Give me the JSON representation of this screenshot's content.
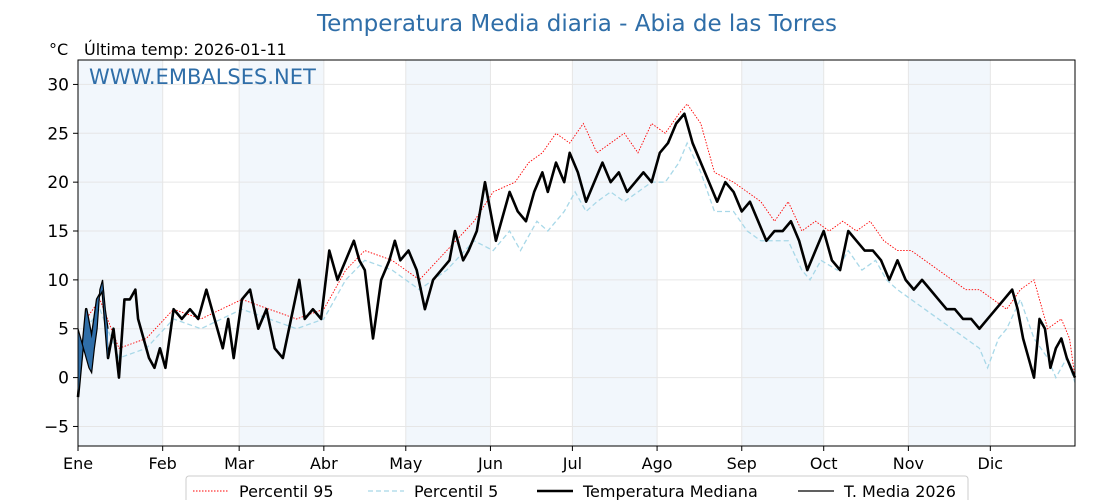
{
  "chart_data": {
    "type": "line",
    "title": "Temperatura Media diaria - Abia de las Torres",
    "unit_label": "°C",
    "last_temp_label": "Última temp: 2026-01-11",
    "watermark": "WWW.EMBALSES.NET",
    "xlabel": "",
    "ylabel": "",
    "x_range_days": [
      0,
      365
    ],
    "ylim": [
      -7,
      32.5
    ],
    "y_ticks": [
      -5,
      0,
      5,
      10,
      15,
      20,
      25,
      30
    ],
    "y_tick_labels": [
      "−5",
      "0",
      "5",
      "10",
      "15",
      "20",
      "25",
      "30"
    ],
    "month_ticks": [
      {
        "day": 0,
        "label": "Ene"
      },
      {
        "day": 31,
        "label": "Feb"
      },
      {
        "day": 59,
        "label": "Mar"
      },
      {
        "day": 90,
        "label": "Abr"
      },
      {
        "day": 120,
        "label": "May"
      },
      {
        "day": 151,
        "label": "Jun"
      },
      {
        "day": 181,
        "label": "Jul"
      },
      {
        "day": 212,
        "label": "Ago"
      },
      {
        "day": 243,
        "label": "Sep"
      },
      {
        "day": 273,
        "label": "Oct"
      },
      {
        "day": 304,
        "label": "Nov"
      },
      {
        "day": 334,
        "label": "Dic"
      }
    ],
    "shaded_bands": [
      [
        0,
        31
      ],
      [
        59,
        90
      ],
      [
        120,
        151
      ],
      [
        181,
        212
      ],
      [
        243,
        273
      ],
      [
        304,
        334
      ]
    ],
    "grid": true,
    "legend_position": "bottom",
    "series": [
      {
        "name": "Percentil 95",
        "color": "#ff0000",
        "style": "dotted",
        "points": [
          [
            0,
            -1.5
          ],
          [
            3,
            6
          ],
          [
            8,
            8
          ],
          [
            15,
            3
          ],
          [
            25,
            4
          ],
          [
            35,
            7
          ],
          [
            45,
            6
          ],
          [
            60,
            8
          ],
          [
            70,
            7
          ],
          [
            80,
            6
          ],
          [
            90,
            7
          ],
          [
            98,
            11
          ],
          [
            105,
            13
          ],
          [
            115,
            12
          ],
          [
            125,
            10
          ],
          [
            135,
            13
          ],
          [
            145,
            16
          ],
          [
            152,
            19
          ],
          [
            160,
            20
          ],
          [
            165,
            22
          ],
          [
            170,
            23
          ],
          [
            175,
            25
          ],
          [
            180,
            24
          ],
          [
            185,
            26
          ],
          [
            190,
            23
          ],
          [
            195,
            24
          ],
          [
            200,
            25
          ],
          [
            205,
            23
          ],
          [
            210,
            26
          ],
          [
            215,
            25
          ],
          [
            220,
            27
          ],
          [
            223,
            28
          ],
          [
            228,
            26
          ],
          [
            233,
            21
          ],
          [
            240,
            20
          ],
          [
            245,
            19
          ],
          [
            250,
            18
          ],
          [
            255,
            16
          ],
          [
            260,
            18
          ],
          [
            265,
            15
          ],
          [
            270,
            16
          ],
          [
            275,
            15
          ],
          [
            280,
            16
          ],
          [
            285,
            15
          ],
          [
            290,
            16
          ],
          [
            295,
            14
          ],
          [
            300,
            13
          ],
          [
            305,
            13
          ],
          [
            310,
            12
          ],
          [
            315,
            11
          ],
          [
            320,
            10
          ],
          [
            325,
            9
          ],
          [
            330,
            9
          ],
          [
            335,
            8
          ],
          [
            340,
            7
          ],
          [
            345,
            9
          ],
          [
            350,
            10
          ],
          [
            355,
            5
          ],
          [
            360,
            6
          ],
          [
            363,
            4
          ],
          [
            365,
            0
          ]
        ]
      },
      {
        "name": "Percentil 5",
        "color": "#a8d8e8",
        "style": "dashed",
        "points": [
          [
            0,
            -1.5
          ],
          [
            3,
            5
          ],
          [
            8,
            7
          ],
          [
            15,
            2
          ],
          [
            25,
            3
          ],
          [
            35,
            6
          ],
          [
            45,
            5
          ],
          [
            60,
            7
          ],
          [
            70,
            6
          ],
          [
            80,
            5
          ],
          [
            90,
            6
          ],
          [
            98,
            10
          ],
          [
            105,
            12
          ],
          [
            115,
            11
          ],
          [
            125,
            9
          ],
          [
            135,
            11
          ],
          [
            145,
            14
          ],
          [
            152,
            13
          ],
          [
            158,
            15
          ],
          [
            162,
            13
          ],
          [
            168,
            16
          ],
          [
            172,
            15
          ],
          [
            178,
            17
          ],
          [
            182,
            19
          ],
          [
            186,
            17
          ],
          [
            190,
            18
          ],
          [
            195,
            19
          ],
          [
            200,
            18
          ],
          [
            205,
            19
          ],
          [
            210,
            20
          ],
          [
            215,
            20
          ],
          [
            220,
            22
          ],
          [
            223,
            24
          ],
          [
            228,
            21
          ],
          [
            233,
            17
          ],
          [
            240,
            17
          ],
          [
            245,
            15
          ],
          [
            250,
            14
          ],
          [
            255,
            14
          ],
          [
            260,
            14
          ],
          [
            265,
            11
          ],
          [
            268,
            10
          ],
          [
            272,
            12
          ],
          [
            278,
            11
          ],
          [
            282,
            13
          ],
          [
            287,
            11
          ],
          [
            292,
            12
          ],
          [
            296,
            10
          ],
          [
            300,
            9
          ],
          [
            305,
            8
          ],
          [
            310,
            7
          ],
          [
            315,
            6
          ],
          [
            320,
            5
          ],
          [
            325,
            4
          ],
          [
            330,
            3
          ],
          [
            333,
            1
          ],
          [
            337,
            4
          ],
          [
            340,
            5
          ],
          [
            345,
            8
          ],
          [
            350,
            4
          ],
          [
            355,
            2
          ],
          [
            358,
            0
          ],
          [
            362,
            2
          ],
          [
            365,
            -0.5
          ]
        ]
      },
      {
        "name": "Temperatura Mediana",
        "color": "#000000",
        "style": "solid-thick",
        "points": [
          [
            0,
            -2
          ],
          [
            3,
            7
          ],
          [
            5,
            4
          ],
          [
            7,
            8
          ],
          [
            9,
            9
          ],
          [
            11,
            2
          ],
          [
            13,
            5
          ],
          [
            15,
            0
          ],
          [
            17,
            8
          ],
          [
            19,
            8
          ],
          [
            21,
            9
          ],
          [
            22,
            6
          ],
          [
            24,
            4
          ],
          [
            26,
            2
          ],
          [
            28,
            1
          ],
          [
            30,
            3
          ],
          [
            32,
            1
          ],
          [
            35,
            7
          ],
          [
            38,
            6
          ],
          [
            41,
            7
          ],
          [
            44,
            6
          ],
          [
            47,
            9
          ],
          [
            50,
            6
          ],
          [
            53,
            3
          ],
          [
            55,
            6
          ],
          [
            57,
            2
          ],
          [
            60,
            8
          ],
          [
            63,
            9
          ],
          [
            66,
            5
          ],
          [
            69,
            7
          ],
          [
            72,
            3
          ],
          [
            75,
            2
          ],
          [
            78,
            6
          ],
          [
            81,
            10
          ],
          [
            83,
            6
          ],
          [
            86,
            7
          ],
          [
            89,
            6
          ],
          [
            92,
            13
          ],
          [
            95,
            10
          ],
          [
            98,
            12
          ],
          [
            101,
            14
          ],
          [
            103,
            12
          ],
          [
            105,
            11
          ],
          [
            108,
            4
          ],
          [
            111,
            10
          ],
          [
            114,
            12
          ],
          [
            116,
            14
          ],
          [
            118,
            12
          ],
          [
            121,
            13
          ],
          [
            124,
            11
          ],
          [
            127,
            7
          ],
          [
            130,
            10
          ],
          [
            133,
            11
          ],
          [
            136,
            12
          ],
          [
            138,
            15
          ],
          [
            141,
            12
          ],
          [
            143,
            13
          ],
          [
            146,
            15
          ],
          [
            149,
            20
          ],
          [
            151,
            17
          ],
          [
            153,
            14
          ],
          [
            155,
            16
          ],
          [
            158,
            19
          ],
          [
            161,
            17
          ],
          [
            164,
            16
          ],
          [
            167,
            19
          ],
          [
            170,
            21
          ],
          [
            172,
            19
          ],
          [
            175,
            22
          ],
          [
            178,
            20
          ],
          [
            180,
            23
          ],
          [
            183,
            21
          ],
          [
            186,
            18
          ],
          [
            189,
            20
          ],
          [
            192,
            22
          ],
          [
            195,
            20
          ],
          [
            198,
            21
          ],
          [
            201,
            19
          ],
          [
            204,
            20
          ],
          [
            207,
            21
          ],
          [
            210,
            20
          ],
          [
            213,
            23
          ],
          [
            216,
            24
          ],
          [
            219,
            26
          ],
          [
            222,
            27
          ],
          [
            225,
            24
          ],
          [
            228,
            22
          ],
          [
            231,
            20
          ],
          [
            234,
            18
          ],
          [
            237,
            20
          ],
          [
            240,
            19
          ],
          [
            243,
            17
          ],
          [
            246,
            18
          ],
          [
            249,
            16
          ],
          [
            252,
            14
          ],
          [
            255,
            15
          ],
          [
            258,
            15
          ],
          [
            261,
            16
          ],
          [
            264,
            14
          ],
          [
            267,
            11
          ],
          [
            270,
            13
          ],
          [
            273,
            15
          ],
          [
            276,
            12
          ],
          [
            279,
            11
          ],
          [
            282,
            15
          ],
          [
            285,
            14
          ],
          [
            288,
            13
          ],
          [
            291,
            13
          ],
          [
            294,
            12
          ],
          [
            297,
            10
          ],
          [
            300,
            12
          ],
          [
            303,
            10
          ],
          [
            306,
            9
          ],
          [
            309,
            10
          ],
          [
            312,
            9
          ],
          [
            315,
            8
          ],
          [
            318,
            7
          ],
          [
            321,
            7
          ],
          [
            324,
            6
          ],
          [
            327,
            6
          ],
          [
            330,
            5
          ],
          [
            333,
            6
          ],
          [
            336,
            7
          ],
          [
            339,
            8
          ],
          [
            342,
            9
          ],
          [
            344,
            7
          ],
          [
            346,
            4
          ],
          [
            348,
            2
          ],
          [
            350,
            0
          ],
          [
            352,
            6
          ],
          [
            354,
            5
          ],
          [
            356,
            1
          ],
          [
            358,
            3
          ],
          [
            360,
            4
          ],
          [
            362,
            2
          ],
          [
            365,
            0
          ]
        ]
      },
      {
        "name": "T. Media 2026",
        "color": "#000000",
        "style": "solid-thin",
        "fill": "#2f6ea8",
        "points": [
          [
            0,
            5
          ],
          [
            1,
            4
          ],
          [
            2,
            3
          ],
          [
            3,
            2
          ],
          [
            4,
            1
          ],
          [
            5,
            0.5
          ],
          [
            6,
            3
          ],
          [
            7,
            5
          ],
          [
            8,
            9
          ],
          [
            9,
            10
          ],
          [
            10,
            7
          ],
          [
            11,
            5
          ]
        ]
      }
    ]
  }
}
